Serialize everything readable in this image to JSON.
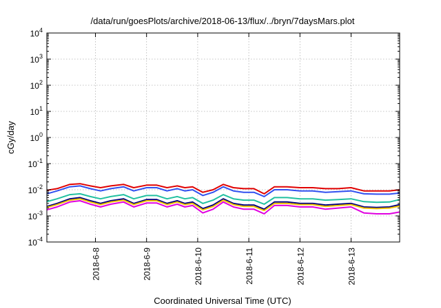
{
  "chart_data": {
    "type": "line",
    "title": "/data/run/goesPlots/archive/2018-06-13/flux/../bryn/7daysMars.plot",
    "xlabel": "Coordinated Universal Time (UTC)",
    "ylabel": "cGy/day",
    "yscale": "log",
    "ylim": [
      0.0001,
      10000
    ],
    "xlim": [
      -0.95,
      5.95
    ],
    "grid": true,
    "x_ticks": [
      {
        "x": 0,
        "label": "2018-6-8"
      },
      {
        "x": 1,
        "label": "2018-6-9"
      },
      {
        "x": 2,
        "label": "2018-6-10"
      },
      {
        "x": 3,
        "label": "2018-6-11"
      },
      {
        "x": 4,
        "label": "2018-6-12"
      },
      {
        "x": 5,
        "label": "2018-6-13"
      }
    ],
    "y_ticks": [
      {
        "exp": -4,
        "base": "10",
        "sup": "-4"
      },
      {
        "exp": -3,
        "base": "10",
        "sup": "-3"
      },
      {
        "exp": -2,
        "base": "10",
        "sup": "-2"
      },
      {
        "exp": -1,
        "base": "10",
        "sup": "-1"
      },
      {
        "exp": 0,
        "base": "10",
        "sup": "0"
      },
      {
        "exp": 1,
        "base": "10",
        "sup": "1"
      },
      {
        "exp": 2,
        "base": "10",
        "sup": "2"
      },
      {
        "exp": 3,
        "base": "10",
        "sup": "3"
      },
      {
        "exp": 4,
        "base": "10",
        "sup": "4"
      }
    ],
    "x": [
      -0.95,
      -0.75,
      -0.5,
      -0.3,
      -0.1,
      0.1,
      0.3,
      0.55,
      0.75,
      1.0,
      1.2,
      1.4,
      1.6,
      1.75,
      1.9,
      2.1,
      2.3,
      2.5,
      2.7,
      2.9,
      3.1,
      3.3,
      3.5,
      3.75,
      4.0,
      4.25,
      4.5,
      4.75,
      5.0,
      5.25,
      5.5,
      5.75,
      5.95
    ],
    "series": [
      {
        "color": "#e00000",
        "values": [
          0.0095,
          0.011,
          0.016,
          0.017,
          0.014,
          0.012,
          0.014,
          0.016,
          0.012,
          0.015,
          0.015,
          0.012,
          0.014,
          0.012,
          0.013,
          0.008,
          0.01,
          0.016,
          0.012,
          0.011,
          0.011,
          0.007,
          0.013,
          0.013,
          0.012,
          0.012,
          0.011,
          0.011,
          0.012,
          0.009,
          0.009,
          0.009,
          0.01
        ]
      },
      {
        "color": "#3050f0",
        "values": [
          0.007,
          0.009,
          0.013,
          0.014,
          0.011,
          0.009,
          0.011,
          0.013,
          0.009,
          0.012,
          0.012,
          0.009,
          0.011,
          0.009,
          0.01,
          0.006,
          0.008,
          0.013,
          0.009,
          0.008,
          0.008,
          0.0055,
          0.01,
          0.01,
          0.009,
          0.009,
          0.008,
          0.0085,
          0.009,
          0.007,
          0.0068,
          0.0068,
          0.0075
        ]
      },
      {
        "color": "#20c0a0",
        "values": [
          0.0035,
          0.0045,
          0.0065,
          0.007,
          0.0055,
          0.0045,
          0.0055,
          0.0065,
          0.0045,
          0.006,
          0.006,
          0.0045,
          0.0055,
          0.0045,
          0.005,
          0.003,
          0.004,
          0.0065,
          0.0045,
          0.004,
          0.004,
          0.0028,
          0.005,
          0.005,
          0.0045,
          0.0045,
          0.004,
          0.0042,
          0.0045,
          0.0035,
          0.0033,
          0.0034,
          0.0042
        ]
      },
      {
        "color": "#000080",
        "values": [
          0.0023,
          0.003,
          0.0045,
          0.005,
          0.0038,
          0.003,
          0.0038,
          0.0045,
          0.003,
          0.0042,
          0.0042,
          0.003,
          0.0038,
          0.003,
          0.0034,
          0.0019,
          0.0026,
          0.0045,
          0.003,
          0.0026,
          0.0026,
          0.0018,
          0.0034,
          0.0034,
          0.003,
          0.003,
          0.0026,
          0.0028,
          0.003,
          0.0022,
          0.0021,
          0.0022,
          0.0027
        ]
      },
      {
        "color": "#f0c000",
        "values": [
          0.0021,
          0.0027,
          0.004,
          0.0045,
          0.0034,
          0.0027,
          0.0034,
          0.004,
          0.0027,
          0.0038,
          0.0038,
          0.0027,
          0.0034,
          0.0027,
          0.003,
          0.0017,
          0.0023,
          0.004,
          0.0027,
          0.0023,
          0.0023,
          0.0016,
          0.003,
          0.003,
          0.0027,
          0.0027,
          0.0023,
          0.0025,
          0.0027,
          0.002,
          0.0019,
          0.002,
          0.0024
        ]
      },
      {
        "color": "#e000e0",
        "values": [
          0.0017,
          0.0022,
          0.0034,
          0.0038,
          0.0028,
          0.0022,
          0.0028,
          0.0034,
          0.0022,
          0.0031,
          0.0031,
          0.0022,
          0.0028,
          0.0022,
          0.0025,
          0.0013,
          0.0018,
          0.0034,
          0.0022,
          0.0018,
          0.0018,
          0.0012,
          0.0025,
          0.0025,
          0.0022,
          0.0022,
          0.0018,
          0.002,
          0.0022,
          0.0013,
          0.0012,
          0.0012,
          0.0014
        ]
      }
    ]
  }
}
